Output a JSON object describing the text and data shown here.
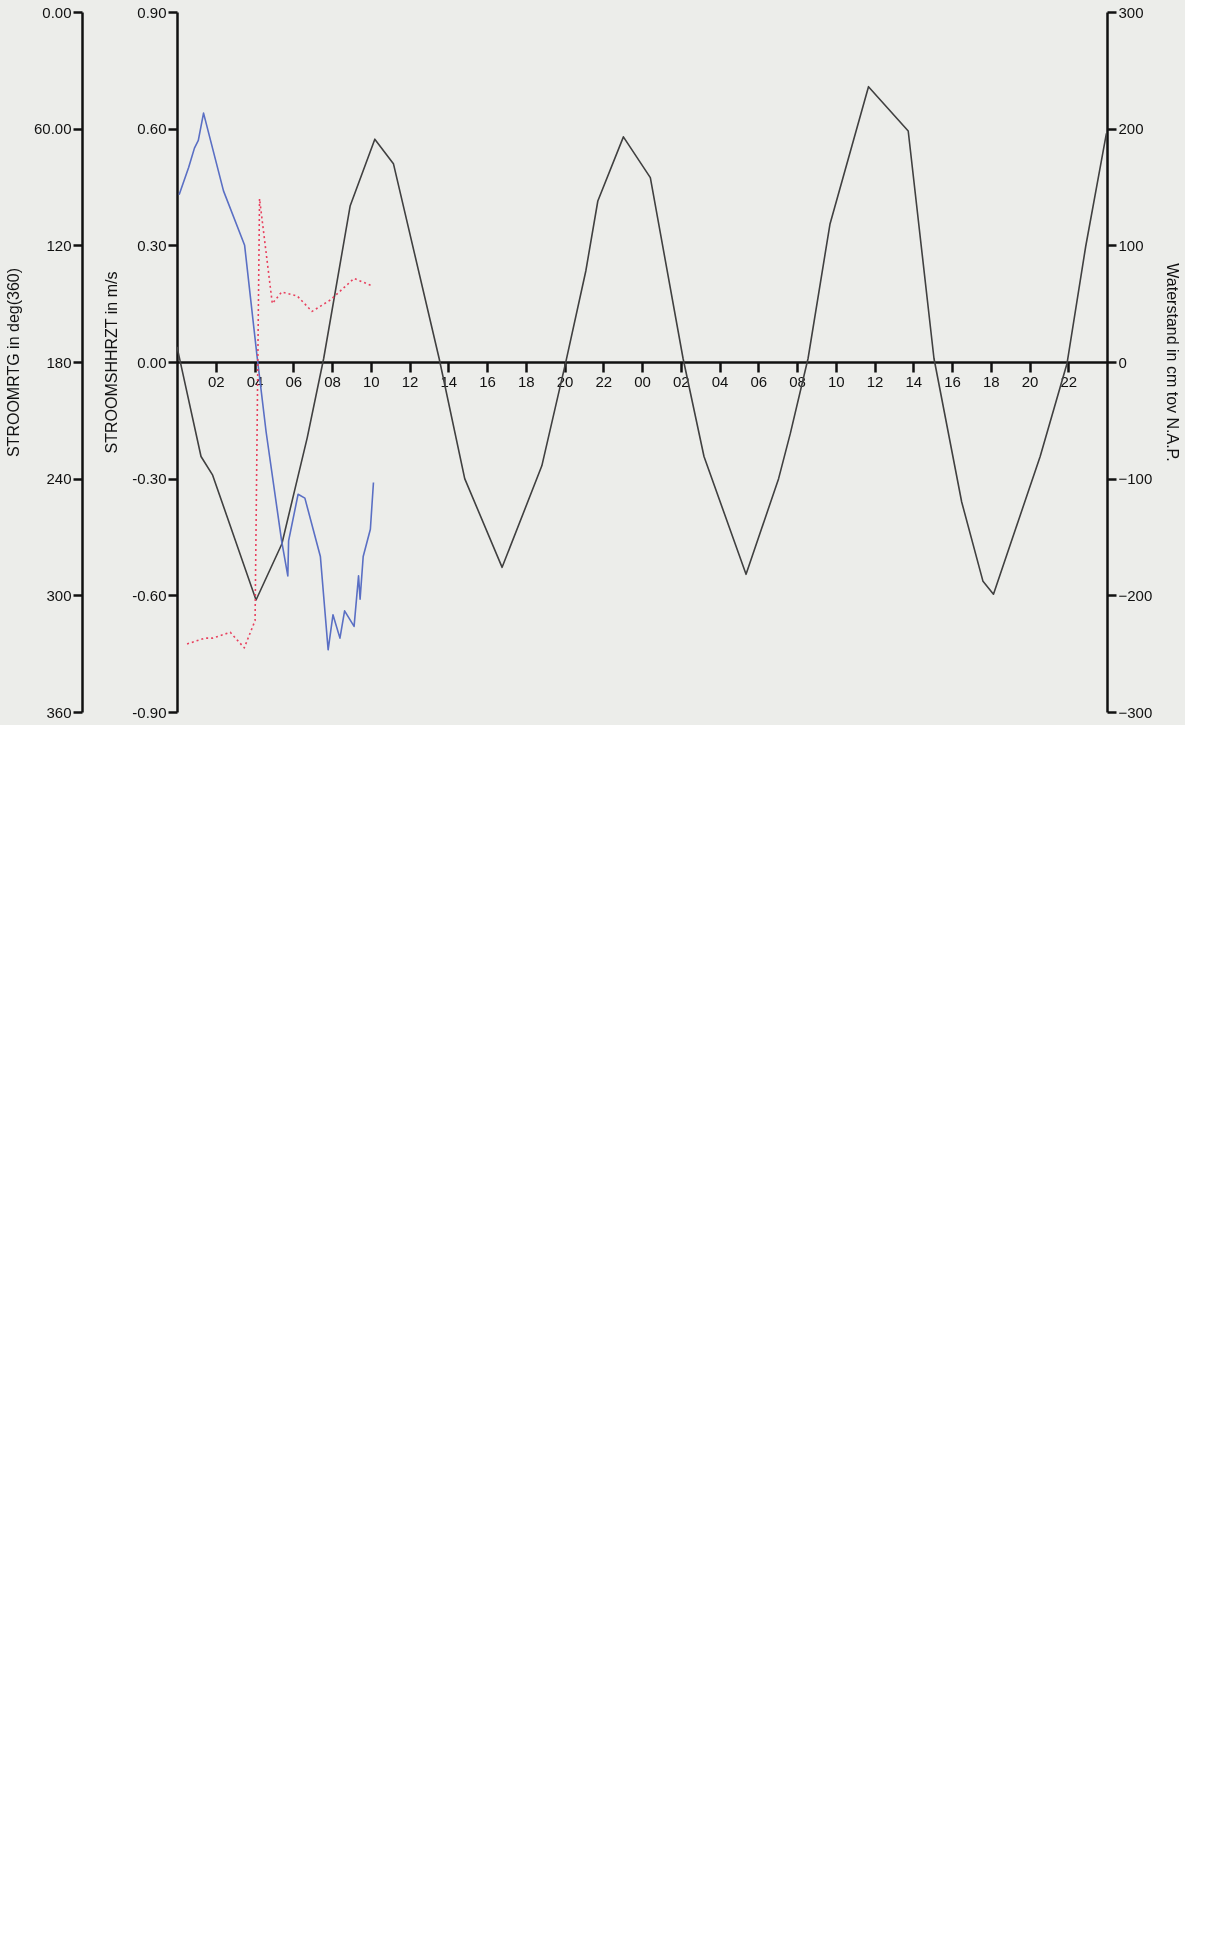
{
  "chart_data": {
    "type": "line",
    "xlim": [
      0,
      48
    ],
    "xticks": [
      {
        "value": 2,
        "label": "02"
      },
      {
        "value": 4,
        "label": "04"
      },
      {
        "value": 6,
        "label": "06"
      },
      {
        "value": 8,
        "label": "08"
      },
      {
        "value": 10,
        "label": "10"
      },
      {
        "value": 12,
        "label": "12"
      },
      {
        "value": 14,
        "label": "14"
      },
      {
        "value": 16,
        "label": "16"
      },
      {
        "value": 18,
        "label": "18"
      },
      {
        "value": 20,
        "label": "20"
      },
      {
        "value": 22,
        "label": "22"
      },
      {
        "value": 24,
        "label": "00"
      },
      {
        "value": 26,
        "label": "02"
      },
      {
        "value": 28,
        "label": "04"
      },
      {
        "value": 30,
        "label": "06"
      },
      {
        "value": 32,
        "label": "08"
      },
      {
        "value": 34,
        "label": "10"
      },
      {
        "value": 36,
        "label": "12"
      },
      {
        "value": 38,
        "label": "14"
      },
      {
        "value": 40,
        "label": "16"
      },
      {
        "value": 42,
        "label": "18"
      },
      {
        "value": 44,
        "label": "20"
      },
      {
        "value": 46,
        "label": "22"
      }
    ],
    "ylabel": "STROOMSHHRZT in m/s",
    "ylim": [
      -0.9,
      0.9
    ],
    "yticks": [
      {
        "value": -0.9,
        "label": "-0.90"
      },
      {
        "value": -0.6,
        "label": "-0.60"
      },
      {
        "value": -0.3,
        "label": "-0.30"
      },
      {
        "value": 0,
        "label": "0.00"
      },
      {
        "value": 0.3,
        "label": "0.30"
      },
      {
        "value": 0.6,
        "label": "0.60"
      },
      {
        "value": 0.9,
        "label": "0.90"
      }
    ],
    "y2label": "Waterstand in cm tov N.A.P.",
    "y2lim": [
      -300,
      300
    ],
    "y2ticks": [
      -300,
      -200,
      -100,
      0,
      100,
      200,
      300
    ],
    "y3label": "STROOMRTG in deg(360)",
    "y3lim": [
      360,
      0
    ],
    "y3ticks": [
      {
        "value": 0,
        "label": "0.00"
      },
      {
        "value": 60,
        "label": "60.00"
      },
      120,
      180,
      240,
      300,
      360
    ],
    "grid": false,
    "series": [
      {
        "axis": "y2",
        "color": "#404040",
        "line_style": "solid",
        "x": [
          0,
          1.24,
          1.84,
          4.08,
          5.41,
          6.72,
          7.57,
          8.94,
          10.21,
          11.17,
          13.53,
          14.85,
          16.78,
          18.83,
          20.08,
          21.1,
          21.72,
          23.04,
          24.43,
          26.12,
          27.2,
          29.37,
          31.05,
          31.66,
          32.57,
          33.7,
          35.69,
          37.74,
          39.07,
          40.5,
          41.6,
          42.14,
          44.55,
          45.94,
          46.9,
          47.97
        ],
        "values": [
          13,
          -81,
          -97,
          -204,
          -156,
          -65,
          3,
          134,
          191,
          170,
          3,
          -100,
          -176,
          -89,
          1,
          78,
          138,
          193,
          158,
          3,
          -81,
          -182,
          -100,
          -61,
          3,
          118,
          236,
          198,
          3,
          -120,
          -188,
          -199,
          -81,
          -1,
          99,
          196
        ]
      },
      {
        "axis": "y",
        "color": "#5a6fc4",
        "line_style": "solid",
        "x": [
          0.11,
          0.6,
          0.9,
          1.1,
          1.37,
          2.4,
          3.49,
          4.12,
          4.6,
          5.4,
          5.72,
          5.76,
          6.25,
          6.6,
          7.4,
          7.8,
          8.05,
          8.41,
          8.65,
          9.14,
          9.37,
          9.45,
          9.61,
          9.98,
          10.14
        ],
        "values": [
          0.43,
          0.5,
          0.55,
          0.57,
          0.64,
          0.44,
          0.3,
          0.02,
          -0.18,
          -0.46,
          -0.55,
          -0.46,
          -0.34,
          -0.35,
          -0.5,
          -0.74,
          -0.65,
          -0.71,
          -0.64,
          -0.68,
          -0.55,
          -0.61,
          -0.5,
          -0.43,
          -0.31
        ]
      },
      {
        "axis": "y3",
        "color": "#e8405e",
        "line_style": "dotted",
        "x": [
          0.52,
          1.44,
          1.84,
          2.75,
          3.47,
          4.03,
          4.26,
          4.92,
          5.4,
          6.2,
          6.97,
          7.93,
          9.14,
          10.1
        ],
        "values": [
          325,
          322,
          322,
          319,
          327,
          313,
          96,
          150,
          144,
          146,
          154,
          148,
          137,
          141
        ]
      }
    ]
  }
}
